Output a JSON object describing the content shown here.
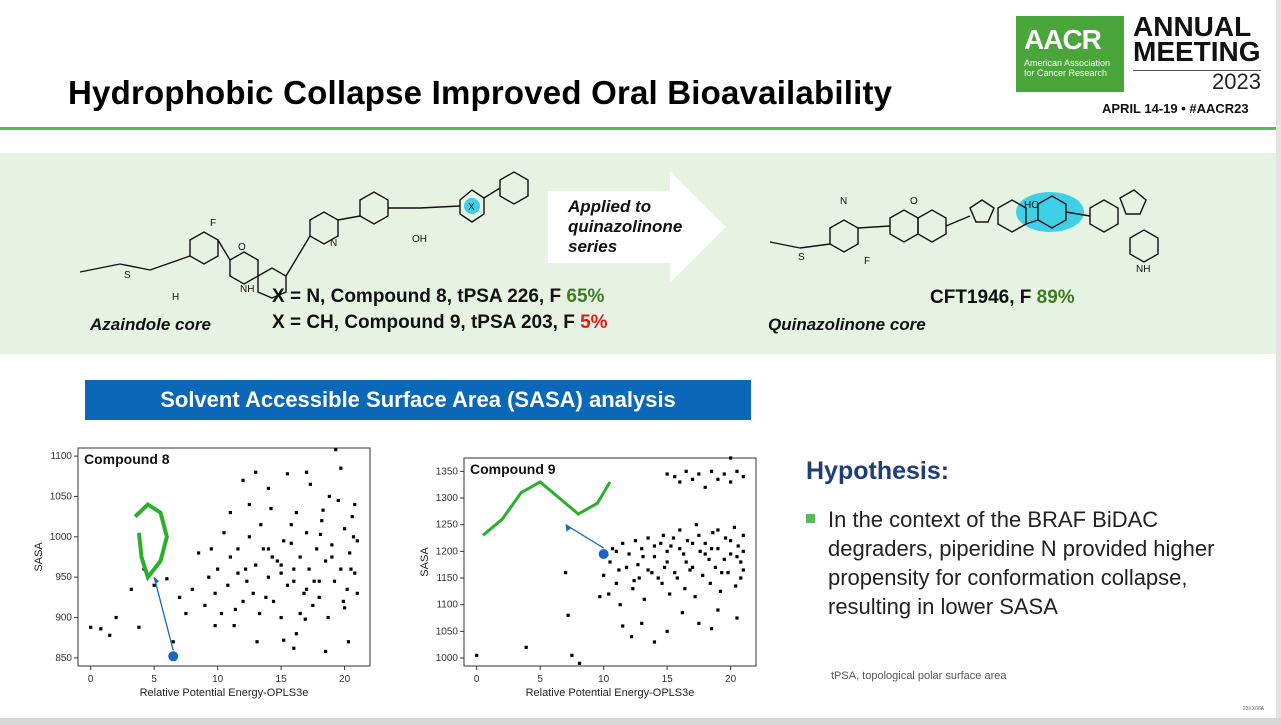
{
  "slide_title": "Hydrophobic Collapse Improved Oral Bioavailability",
  "logo": {
    "word": "AACR",
    "sub1": "American Association",
    "sub2": "for Cancer Research",
    "annual": "ANNUAL",
    "meeting": "MEETING",
    "year": "2023",
    "dates": "APRIL 14-19 • #AACR23"
  },
  "arrow_text": {
    "line1": "Applied to",
    "line2": "quinazolinone",
    "line3": "series"
  },
  "left_compounds": {
    "cmp8_prefix": "X = N, Compound 8, tPSA 226, F ",
    "cmp8_f": "65%",
    "cmp9_prefix": "X = CH, Compound 9, tPSA 203, F ",
    "cmp9_f": "5%",
    "core": "Azaindole core"
  },
  "right_compound": {
    "prefix": "CFT1946, F ",
    "f": "89%",
    "core": "Quinazolinone core"
  },
  "mol_labels": {
    "F": "F",
    "O": "O",
    "N": "N",
    "NH": "NH",
    "H": "H",
    "S": "S",
    "HO": "HO",
    "OH": "OH",
    "X": "X"
  },
  "banner": "Solvent Accessible Surface Area (SASA) analysis",
  "hypothesis": {
    "title": "Hypothesis:",
    "text": "In the context of the BRAF BiDAC degraders, piperidine N provided higher propensity for conformation collapse, resulting in lower SASA"
  },
  "footnote": "tPSA, topological polar surface area",
  "code": "23XX06A",
  "colors": {
    "green": "#3c7d22",
    "red": "#e8181a",
    "banner": "#0b67b7",
    "band": "#e6f3e3"
  },
  "chart_data": [
    {
      "type": "scatter",
      "title": "Compound 8",
      "xlabel": "Relative Potential Energy-OPLS3e",
      "ylabel": "SASA",
      "xlim": [
        -1,
        22
      ],
      "ylim": [
        840,
        1110
      ],
      "xticks": [
        0,
        5,
        10,
        15,
        20
      ],
      "yticks": [
        850,
        900,
        950,
        1000,
        1050,
        1100
      ],
      "highlight_point": [
        6.5,
        852
      ],
      "points": [
        [
          0,
          888
        ],
        [
          0.8,
          886
        ],
        [
          1.5,
          878
        ],
        [
          2,
          900
        ],
        [
          3.2,
          935
        ],
        [
          3.8,
          888
        ],
        [
          4.2,
          960
        ],
        [
          5,
          940
        ],
        [
          6,
          948
        ],
        [
          6.5,
          870
        ],
        [
          7,
          925
        ],
        [
          7.5,
          905
        ],
        [
          8,
          935
        ],
        [
          8.5,
          980
        ],
        [
          9,
          915
        ],
        [
          9.3,
          950
        ],
        [
          9.8,
          930
        ],
        [
          10,
          960
        ],
        [
          10.3,
          905
        ],
        [
          10.8,
          940
        ],
        [
          11,
          975
        ],
        [
          11.3,
          890
        ],
        [
          11.6,
          955
        ],
        [
          12,
          920
        ],
        [
          12.3,
          945
        ],
        [
          12.5,
          1000
        ],
        [
          12.8,
          930
        ],
        [
          13,
          965
        ],
        [
          13.3,
          905
        ],
        [
          13.6,
          985
        ],
        [
          14,
          950
        ],
        [
          14.2,
          1035
        ],
        [
          14.4,
          920
        ],
        [
          14.7,
          970
        ],
        [
          15,
          900
        ],
        [
          15.2,
          995
        ],
        [
          15.5,
          940
        ],
        [
          15.8,
          1015
        ],
        [
          16,
          960
        ],
        [
          16.2,
          880
        ],
        [
          16.5,
          975
        ],
        [
          16.8,
          930
        ],
        [
          17,
          1005
        ],
        [
          17.2,
          960
        ],
        [
          17.5,
          915
        ],
        [
          17.8,
          985
        ],
        [
          18,
          945
        ],
        [
          18.2,
          1020
        ],
        [
          18.5,
          970
        ],
        [
          18.7,
          900
        ],
        [
          19,
          990
        ],
        [
          19.2,
          945
        ],
        [
          19.5,
          1045
        ],
        [
          19.7,
          960
        ],
        [
          20,
          1010
        ],
        [
          20.2,
          935
        ],
        [
          20.4,
          980
        ],
        [
          20.6,
          1025
        ],
        [
          20.8,
          955
        ],
        [
          21,
          995
        ],
        [
          19.3,
          1108
        ],
        [
          16,
          862
        ],
        [
          12,
          1070
        ],
        [
          17,
          1080
        ],
        [
          13,
          1080
        ],
        [
          15.5,
          1078
        ],
        [
          11,
          1030
        ],
        [
          20.3,
          870
        ],
        [
          18.5,
          858
        ],
        [
          14,
          1060
        ],
        [
          15,
          955
        ],
        [
          16.5,
          905
        ],
        [
          13.8,
          925
        ],
        [
          17.6,
          945
        ],
        [
          19.9,
          920
        ],
        [
          20.5,
          960
        ],
        [
          10.5,
          1005
        ],
        [
          9.5,
          985
        ],
        [
          18.8,
          1050
        ],
        [
          17.3,
          1065
        ],
        [
          12.5,
          1040
        ],
        [
          16.2,
          1030
        ],
        [
          19.7,
          1085
        ],
        [
          11.6,
          985
        ],
        [
          14.3,
          975
        ],
        [
          18.1,
          1003
        ],
        [
          20.8,
          1040
        ],
        [
          9.8,
          890
        ],
        [
          13.1,
          870
        ],
        [
          15.2,
          872
        ],
        [
          16.9,
          898
        ],
        [
          21,
          930
        ],
        [
          20,
          912
        ],
        [
          18,
          925
        ],
        [
          17,
          935
        ],
        [
          16,
          945
        ],
        [
          15,
          965
        ],
        [
          14,
          985
        ],
        [
          19,
          975
        ],
        [
          20.7,
          1000
        ],
        [
          18.3,
          1033
        ],
        [
          15.8,
          992
        ],
        [
          13.4,
          1015
        ],
        [
          12.2,
          960
        ],
        [
          11.4,
          910
        ]
      ]
    },
    {
      "type": "scatter",
      "title": "Compound 9",
      "xlabel": "Relative Potential Energy-OPLS3e",
      "ylabel": "SASA",
      "xlim": [
        -1,
        22
      ],
      "ylim": [
        985,
        1375
      ],
      "xticks": [
        0,
        5,
        10,
        15,
        20
      ],
      "yticks": [
        1000,
        1050,
        1100,
        1150,
        1200,
        1250,
        1300,
        1350
      ],
      "highlight_point": [
        10,
        1195
      ],
      "points": [
        [
          0,
          1005
        ],
        [
          3.9,
          1020
        ],
        [
          7.5,
          1005
        ],
        [
          8.1,
          990
        ],
        [
          7.2,
          1080
        ],
        [
          7,
          1160
        ],
        [
          10,
          1155
        ],
        [
          10.4,
          1120
        ],
        [
          11,
          1140
        ],
        [
          11.3,
          1100
        ],
        [
          11.8,
          1170
        ],
        [
          12.3,
          1130
        ],
        [
          12.8,
          1150
        ],
        [
          13.1,
          1190
        ],
        [
          13.5,
          1165
        ],
        [
          14,
          1210
        ],
        [
          14.3,
          1150
        ],
        [
          14.7,
          1230
        ],
        [
          15,
          1180
        ],
        [
          15.3,
          1210
        ],
        [
          15.6,
          1160
        ],
        [
          16,
          1240
        ],
        [
          16.3,
          1195
        ],
        [
          16.6,
          1220
        ],
        [
          17,
          1170
        ],
        [
          17.3,
          1250
        ],
        [
          17.6,
          1200
        ],
        [
          18,
          1215
        ],
        [
          18.3,
          1185
        ],
        [
          18.6,
          1235
        ],
        [
          19,
          1205
        ],
        [
          19.3,
          1160
        ],
        [
          19.6,
          1225
        ],
        [
          20,
          1195
        ],
        [
          20.3,
          1245
        ],
        [
          20.6,
          1210
        ],
        [
          20.8,
          1180
        ],
        [
          21,
          1230
        ],
        [
          15,
          1345
        ],
        [
          15.6,
          1340
        ],
        [
          16,
          1330
        ],
        [
          16.5,
          1350
        ],
        [
          17,
          1335
        ],
        [
          17.5,
          1345
        ],
        [
          18,
          1320
        ],
        [
          18.5,
          1350
        ],
        [
          19,
          1335
        ],
        [
          19.5,
          1345
        ],
        [
          20,
          1330
        ],
        [
          20.5,
          1350
        ],
        [
          21,
          1340
        ],
        [
          20,
          1375
        ],
        [
          13,
          1065
        ],
        [
          14,
          1030
        ],
        [
          15,
          1050
        ],
        [
          17.5,
          1065
        ],
        [
          18.5,
          1055
        ],
        [
          12.2,
          1040
        ],
        [
          11.5,
          1060
        ],
        [
          20.5,
          1075
        ],
        [
          19,
          1090
        ],
        [
          16.2,
          1085
        ],
        [
          11,
          1200
        ],
        [
          11.5,
          1215
        ],
        [
          12,
          1195
        ],
        [
          12.5,
          1220
        ],
        [
          13,
          1205
        ],
        [
          13.5,
          1225
        ],
        [
          14,
          1190
        ],
        [
          14.5,
          1215
        ],
        [
          15,
          1200
        ],
        [
          15.5,
          1225
        ],
        [
          16,
          1205
        ],
        [
          16.5,
          1180
        ],
        [
          17,
          1215
        ],
        [
          17.5,
          1230
        ],
        [
          18,
          1195
        ],
        [
          18.5,
          1205
        ],
        [
          19,
          1240
        ],
        [
          19.5,
          1185
        ],
        [
          20,
          1220
        ],
        [
          20.5,
          1190
        ],
        [
          21,
          1200
        ],
        [
          10.5,
          1180
        ],
        [
          11.2,
          1165
        ],
        [
          12.7,
          1175
        ],
        [
          13.8,
          1160
        ],
        [
          14.8,
          1170
        ],
        [
          15.8,
          1150
        ],
        [
          16.8,
          1165
        ],
        [
          17.8,
          1155
        ],
        [
          18.8,
          1170
        ],
        [
          19.8,
          1160
        ],
        [
          20.8,
          1150
        ],
        [
          12.4,
          1145
        ],
        [
          14.6,
          1140
        ],
        [
          16.4,
          1130
        ],
        [
          18.4,
          1140
        ],
        [
          20.4,
          1135
        ],
        [
          13.2,
          1110
        ],
        [
          15.2,
          1120
        ],
        [
          17.2,
          1115
        ],
        [
          19.2,
          1125
        ],
        [
          21,
          1165
        ],
        [
          10,
          1190
        ],
        [
          10.7,
          1205
        ],
        [
          9.7,
          1115
        ]
      ]
    }
  ]
}
